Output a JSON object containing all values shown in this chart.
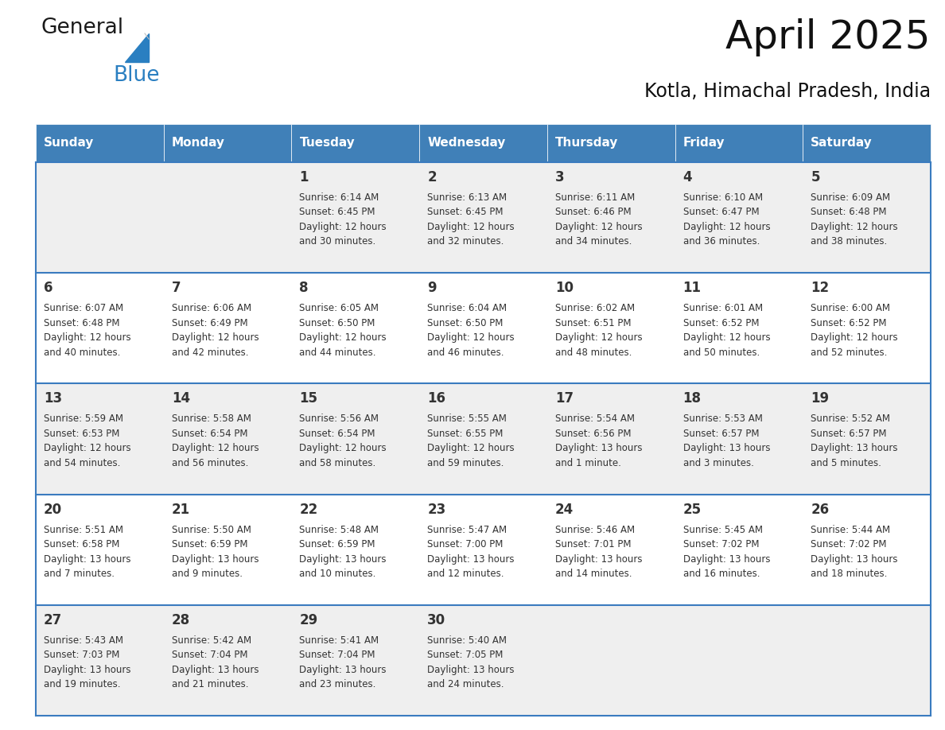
{
  "title": "April 2025",
  "subtitle": "Kotla, Himachal Pradesh, India",
  "header_bg": "#4080b8",
  "header_text_color": "#ffffff",
  "days_of_week": [
    "Sunday",
    "Monday",
    "Tuesday",
    "Wednesday",
    "Thursday",
    "Friday",
    "Saturday"
  ],
  "row_bg_gray": "#efefef",
  "row_bg_white": "#ffffff",
  "cell_text_color": "#333333",
  "grid_line_color": "#3a7bbf",
  "calendar_data": [
    [
      {
        "day": "",
        "sunrise": "",
        "sunset": "",
        "daylight": ""
      },
      {
        "day": "",
        "sunrise": "",
        "sunset": "",
        "daylight": ""
      },
      {
        "day": "1",
        "sunrise": "Sunrise: 6:14 AM",
        "sunset": "Sunset: 6:45 PM",
        "daylight": "Daylight: 12 hours\nand 30 minutes."
      },
      {
        "day": "2",
        "sunrise": "Sunrise: 6:13 AM",
        "sunset": "Sunset: 6:45 PM",
        "daylight": "Daylight: 12 hours\nand 32 minutes."
      },
      {
        "day": "3",
        "sunrise": "Sunrise: 6:11 AM",
        "sunset": "Sunset: 6:46 PM",
        "daylight": "Daylight: 12 hours\nand 34 minutes."
      },
      {
        "day": "4",
        "sunrise": "Sunrise: 6:10 AM",
        "sunset": "Sunset: 6:47 PM",
        "daylight": "Daylight: 12 hours\nand 36 minutes."
      },
      {
        "day": "5",
        "sunrise": "Sunrise: 6:09 AM",
        "sunset": "Sunset: 6:48 PM",
        "daylight": "Daylight: 12 hours\nand 38 minutes."
      }
    ],
    [
      {
        "day": "6",
        "sunrise": "Sunrise: 6:07 AM",
        "sunset": "Sunset: 6:48 PM",
        "daylight": "Daylight: 12 hours\nand 40 minutes."
      },
      {
        "day": "7",
        "sunrise": "Sunrise: 6:06 AM",
        "sunset": "Sunset: 6:49 PM",
        "daylight": "Daylight: 12 hours\nand 42 minutes."
      },
      {
        "day": "8",
        "sunrise": "Sunrise: 6:05 AM",
        "sunset": "Sunset: 6:50 PM",
        "daylight": "Daylight: 12 hours\nand 44 minutes."
      },
      {
        "day": "9",
        "sunrise": "Sunrise: 6:04 AM",
        "sunset": "Sunset: 6:50 PM",
        "daylight": "Daylight: 12 hours\nand 46 minutes."
      },
      {
        "day": "10",
        "sunrise": "Sunrise: 6:02 AM",
        "sunset": "Sunset: 6:51 PM",
        "daylight": "Daylight: 12 hours\nand 48 minutes."
      },
      {
        "day": "11",
        "sunrise": "Sunrise: 6:01 AM",
        "sunset": "Sunset: 6:52 PM",
        "daylight": "Daylight: 12 hours\nand 50 minutes."
      },
      {
        "day": "12",
        "sunrise": "Sunrise: 6:00 AM",
        "sunset": "Sunset: 6:52 PM",
        "daylight": "Daylight: 12 hours\nand 52 minutes."
      }
    ],
    [
      {
        "day": "13",
        "sunrise": "Sunrise: 5:59 AM",
        "sunset": "Sunset: 6:53 PM",
        "daylight": "Daylight: 12 hours\nand 54 minutes."
      },
      {
        "day": "14",
        "sunrise": "Sunrise: 5:58 AM",
        "sunset": "Sunset: 6:54 PM",
        "daylight": "Daylight: 12 hours\nand 56 minutes."
      },
      {
        "day": "15",
        "sunrise": "Sunrise: 5:56 AM",
        "sunset": "Sunset: 6:54 PM",
        "daylight": "Daylight: 12 hours\nand 58 minutes."
      },
      {
        "day": "16",
        "sunrise": "Sunrise: 5:55 AM",
        "sunset": "Sunset: 6:55 PM",
        "daylight": "Daylight: 12 hours\nand 59 minutes."
      },
      {
        "day": "17",
        "sunrise": "Sunrise: 5:54 AM",
        "sunset": "Sunset: 6:56 PM",
        "daylight": "Daylight: 13 hours\nand 1 minute."
      },
      {
        "day": "18",
        "sunrise": "Sunrise: 5:53 AM",
        "sunset": "Sunset: 6:57 PM",
        "daylight": "Daylight: 13 hours\nand 3 minutes."
      },
      {
        "day": "19",
        "sunrise": "Sunrise: 5:52 AM",
        "sunset": "Sunset: 6:57 PM",
        "daylight": "Daylight: 13 hours\nand 5 minutes."
      }
    ],
    [
      {
        "day": "20",
        "sunrise": "Sunrise: 5:51 AM",
        "sunset": "Sunset: 6:58 PM",
        "daylight": "Daylight: 13 hours\nand 7 minutes."
      },
      {
        "day": "21",
        "sunrise": "Sunrise: 5:50 AM",
        "sunset": "Sunset: 6:59 PM",
        "daylight": "Daylight: 13 hours\nand 9 minutes."
      },
      {
        "day": "22",
        "sunrise": "Sunrise: 5:48 AM",
        "sunset": "Sunset: 6:59 PM",
        "daylight": "Daylight: 13 hours\nand 10 minutes."
      },
      {
        "day": "23",
        "sunrise": "Sunrise: 5:47 AM",
        "sunset": "Sunset: 7:00 PM",
        "daylight": "Daylight: 13 hours\nand 12 minutes."
      },
      {
        "day": "24",
        "sunrise": "Sunrise: 5:46 AM",
        "sunset": "Sunset: 7:01 PM",
        "daylight": "Daylight: 13 hours\nand 14 minutes."
      },
      {
        "day": "25",
        "sunrise": "Sunrise: 5:45 AM",
        "sunset": "Sunset: 7:02 PM",
        "daylight": "Daylight: 13 hours\nand 16 minutes."
      },
      {
        "day": "26",
        "sunrise": "Sunrise: 5:44 AM",
        "sunset": "Sunset: 7:02 PM",
        "daylight": "Daylight: 13 hours\nand 18 minutes."
      }
    ],
    [
      {
        "day": "27",
        "sunrise": "Sunrise: 5:43 AM",
        "sunset": "Sunset: 7:03 PM",
        "daylight": "Daylight: 13 hours\nand 19 minutes."
      },
      {
        "day": "28",
        "sunrise": "Sunrise: 5:42 AM",
        "sunset": "Sunset: 7:04 PM",
        "daylight": "Daylight: 13 hours\nand 21 minutes."
      },
      {
        "day": "29",
        "sunrise": "Sunrise: 5:41 AM",
        "sunset": "Sunset: 7:04 PM",
        "daylight": "Daylight: 13 hours\nand 23 minutes."
      },
      {
        "day": "30",
        "sunrise": "Sunrise: 5:40 AM",
        "sunset": "Sunset: 7:05 PM",
        "daylight": "Daylight: 13 hours\nand 24 minutes."
      },
      {
        "day": "",
        "sunrise": "",
        "sunset": "",
        "daylight": ""
      },
      {
        "day": "",
        "sunrise": "",
        "sunset": "",
        "daylight": ""
      },
      {
        "day": "",
        "sunrise": "",
        "sunset": "",
        "daylight": ""
      }
    ]
  ],
  "logo_color_general": "#1a1a1a",
  "logo_color_blue": "#2a7fc1",
  "title_fontsize": 36,
  "subtitle_fontsize": 17,
  "header_fontsize": 11,
  "day_num_fontsize": 12,
  "cell_fontsize": 8.5
}
